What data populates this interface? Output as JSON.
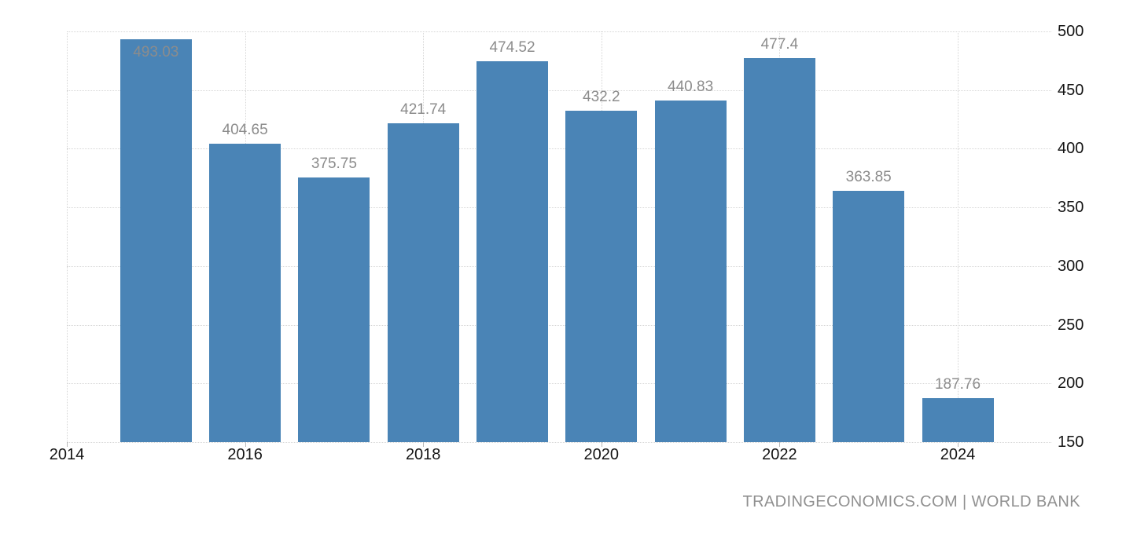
{
  "watermark": {
    "text": "TRADINGECONOMICS.COM | WORLD BANK"
  },
  "chart_data": {
    "type": "bar",
    "x": [
      2015,
      2016,
      2017,
      2018,
      2019,
      2020,
      2021,
      2022,
      2023,
      2024
    ],
    "values": [
      493.03,
      404.65,
      375.75,
      421.74,
      474.52,
      432.2,
      440.83,
      477.4,
      363.85,
      187.76
    ],
    "bar_labels": [
      "493.03",
      "404.65",
      "375.75",
      "421.74",
      "474.52",
      "432.2",
      "440.83",
      "477.4",
      "363.85",
      "187.76"
    ],
    "xticks": [
      2014,
      2016,
      2018,
      2020,
      2022,
      2024
    ],
    "yticks": [
      150,
      200,
      250,
      300,
      350,
      400,
      450,
      500
    ],
    "ylim": [
      150,
      500
    ],
    "xlim": [
      2014,
      2025.05
    ],
    "title": "",
    "xlabel": "",
    "ylabel": "",
    "legend": "none",
    "grid": "dotted, horizontal at yticks and vertical at xticks",
    "yaxis_position": "right",
    "source_note": "TRADINGECONOMICS.COM | WORLD BANK",
    "colors": {
      "bar": "#4a84b6",
      "value_label": "#8c8c8c",
      "axis_label": "#141414",
      "gridline": "#d6d6d6",
      "tick": "#b9b9b9",
      "watermark": "#909090",
      "background": "#ffffff"
    }
  }
}
